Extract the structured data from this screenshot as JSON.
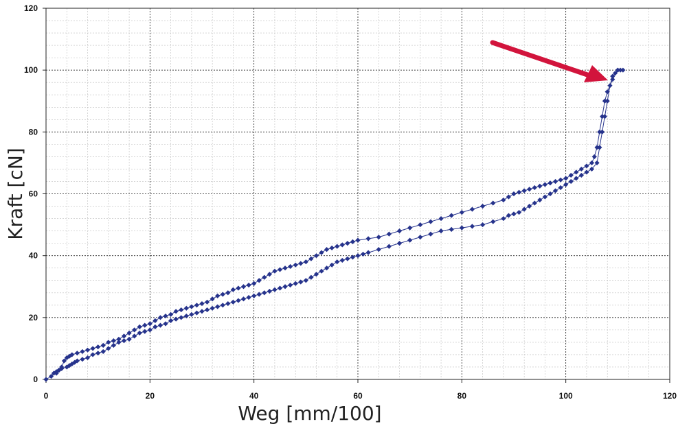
{
  "chart_data": {
    "type": "scatter",
    "xlabel": "Weg [mm/100]",
    "ylabel": "Kraft [cN]",
    "xlim": [
      0,
      120
    ],
    "ylim": [
      0,
      120
    ],
    "xticks": [
      0,
      20,
      40,
      60,
      80,
      100,
      120
    ],
    "yticks": [
      0,
      20,
      40,
      60,
      80,
      100,
      120
    ],
    "grid": true,
    "series_color": "#26338c",
    "arrow_color": "#d2143c",
    "series": [
      {
        "line": true,
        "markers": "diamond",
        "x": [
          0,
          1,
          1.5,
          2,
          2.5,
          3,
          4,
          4.5,
          5,
          5.5,
          6,
          7,
          8,
          9,
          10,
          11,
          12,
          13,
          14,
          15,
          16,
          17,
          18,
          19,
          20,
          21,
          22,
          23,
          24,
          25,
          26,
          27,
          28,
          29,
          30,
          31,
          32,
          33,
          34,
          35,
          36,
          37,
          38,
          39,
          40,
          41,
          42,
          43,
          44,
          45,
          46,
          47,
          48,
          49,
          50,
          51,
          52,
          53,
          54,
          55,
          56,
          57,
          58,
          59,
          60,
          61,
          62,
          64,
          66,
          68,
          70,
          72,
          74,
          76,
          78,
          80,
          82,
          84,
          86,
          88,
          89,
          90,
          91,
          92,
          93,
          94,
          95,
          96,
          97,
          98,
          99,
          100,
          101,
          102,
          103,
          104,
          105,
          106,
          106.5,
          107,
          107.5,
          108,
          108.5,
          109,
          109.5,
          110,
          110.5,
          111
        ],
        "y": [
          0,
          1,
          2,
          2.5,
          3,
          3.5,
          4,
          4.5,
          5,
          5.5,
          6,
          6.5,
          7,
          8,
          8.5,
          9,
          10,
          11,
          12,
          12.5,
          13,
          14,
          15,
          15.5,
          16,
          17,
          17.5,
          18,
          19,
          19.5,
          20,
          20.5,
          21,
          21.5,
          22,
          22.5,
          23,
          23.5,
          24,
          24.5,
          25,
          25.5,
          26,
          26.5,
          27,
          27.5,
          28,
          28.5,
          29,
          29.5,
          30,
          30.5,
          31,
          31.5,
          32,
          33,
          34,
          35,
          36,
          37,
          38,
          38.5,
          39,
          39.5,
          40,
          40.5,
          41,
          42,
          43,
          44,
          45,
          46,
          47,
          48,
          48.5,
          49,
          49.5,
          50,
          51,
          52,
          53,
          53.5,
          54,
          55,
          56,
          57,
          58,
          59,
          60,
          61,
          62,
          63,
          64,
          65,
          66,
          67,
          68,
          70,
          75,
          80,
          85,
          90,
          95,
          98,
          99,
          100,
          100,
          100
        ]
      },
      {
        "line": true,
        "markers": "diamond",
        "x": [
          110,
          109,
          108,
          107.5,
          107,
          106.5,
          106,
          105.5,
          105,
          104,
          103,
          102,
          101,
          100,
          99,
          98,
          97,
          96,
          95,
          94,
          93,
          92,
          91,
          90,
          89,
          88,
          86,
          84,
          82,
          80,
          78,
          76,
          74,
          72,
          70,
          68,
          66,
          64,
          62,
          60,
          59,
          58,
          57,
          56,
          55,
          54,
          53,
          52,
          51,
          50,
          49,
          48,
          47,
          46,
          45,
          44,
          43,
          42,
          41,
          40,
          39,
          38,
          37,
          36,
          35,
          34,
          33,
          32,
          31,
          30,
          29,
          28,
          27,
          26,
          25,
          24,
          23,
          22,
          21,
          20,
          19,
          18,
          17,
          16,
          15,
          14,
          13,
          12,
          11,
          10,
          9,
          8,
          7,
          6,
          5,
          4.5,
          4,
          3.5,
          3,
          2.5,
          2
        ],
        "y": [
          100,
          97,
          93,
          90,
          85,
          80,
          75,
          72,
          70,
          69,
          68,
          67,
          66,
          65,
          64.5,
          64,
          63.5,
          63,
          62.5,
          62,
          61.5,
          61,
          60.5,
          60,
          59,
          58,
          57,
          56,
          55,
          54,
          53,
          52,
          51,
          50,
          49,
          48,
          47,
          46,
          45.5,
          45,
          44.5,
          44,
          43.5,
          43,
          42.5,
          42,
          41,
          40,
          39,
          38,
          37.5,
          37,
          36.5,
          36,
          35.5,
          35,
          34,
          33,
          32,
          31,
          30.5,
          30,
          29.5,
          29,
          28,
          27.5,
          27,
          26,
          25,
          24.5,
          24,
          23.5,
          23,
          22.5,
          22,
          21,
          20.5,
          20,
          19,
          18,
          17.5,
          17,
          16,
          15,
          14,
          13,
          12.5,
          12,
          11,
          10.5,
          10,
          9.5,
          9,
          8.5,
          8,
          7.5,
          7,
          6,
          4,
          3,
          2
        ]
      }
    ]
  }
}
